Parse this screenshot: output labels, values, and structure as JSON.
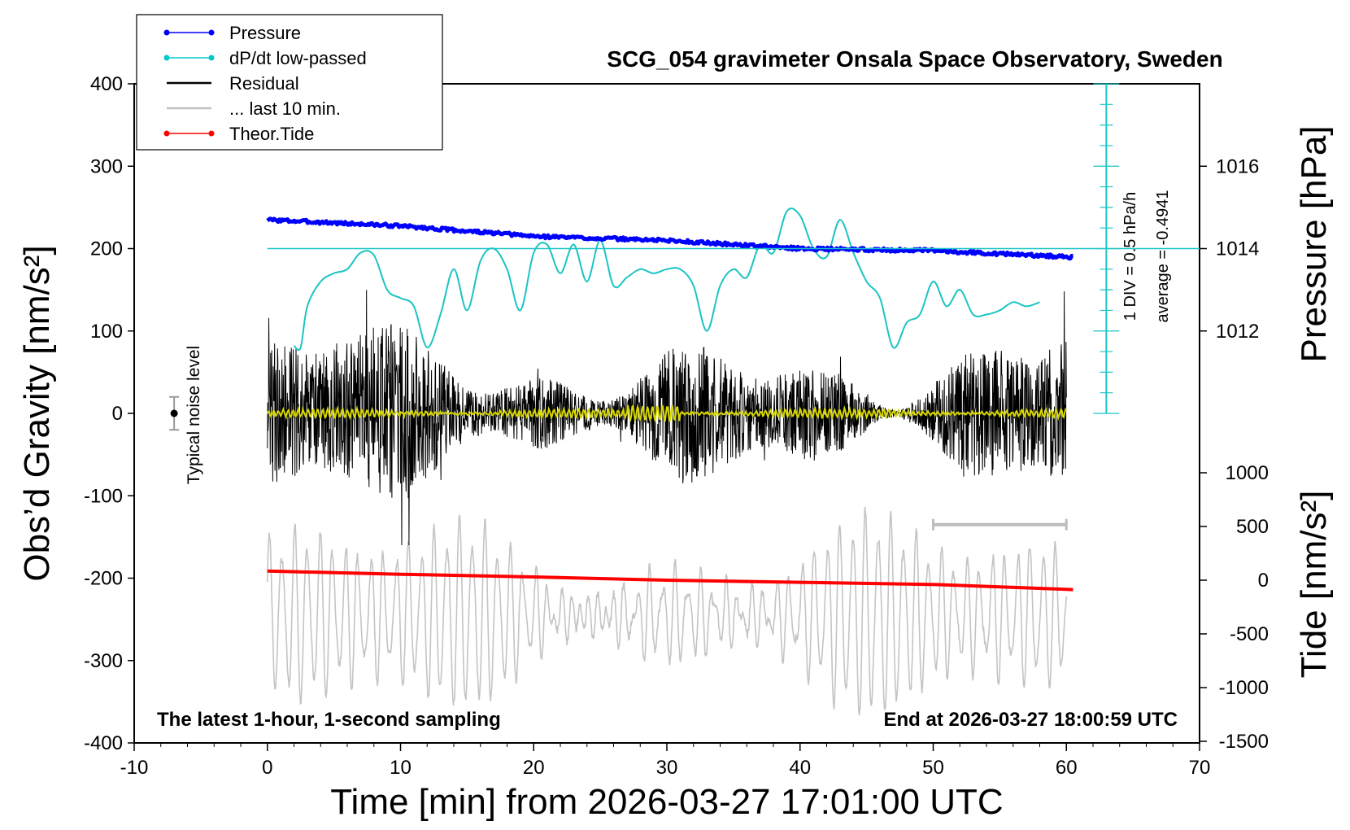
{
  "chart_data": {
    "type": "line",
    "title": "SCG_054 gravimeter Onsala Space Observatory, Sweden",
    "xlabel": "Time [min] from 2026-03-27 17:01:00 UTC",
    "ylabel_left": "Obs’d Gravity [nm/s²]",
    "ylabel_right_pressure": "Pressure [hPa]",
    "ylabel_right_tide": "Tide [nm/s²]",
    "xlim": [
      -10,
      70
    ],
    "ylim_gravity": [
      -400,
      400
    ],
    "x_ticks": [
      "-10",
      "0",
      "10",
      "20",
      "30",
      "40",
      "50",
      "60",
      "70"
    ],
    "y_ticks_gravity": [
      "400",
      "300",
      "200",
      "100",
      "0",
      "-100",
      "-200",
      "-300",
      "-400"
    ],
    "pressure_ticks": [
      "1016",
      "1014",
      "1012"
    ],
    "tide_ticks": [
      "1000",
      "500",
      "0",
      "-500",
      "-1000",
      "-1500"
    ],
    "legend_position": "top-left",
    "legend": [
      {
        "label": "Pressure",
        "color": "#0000ff",
        "marker": "dot"
      },
      {
        "label": "dP/dt low-passed",
        "color": "#00c8c8",
        "marker": "dot"
      },
      {
        "label": "Residual",
        "color": "#000000",
        "marker": "none"
      },
      {
        "label": "... last 10 min.",
        "color": "#c0c0c0",
        "marker": "none"
      },
      {
        "label": "Theor.Tide",
        "color": "#ff0000",
        "marker": "dot"
      }
    ],
    "annotations": {
      "noise_label": "Typical noise level",
      "scale_line1": "1 DIV = 0.5 hPa/h",
      "scale_line2": "average = -0.4941",
      "bottom_left": "The latest 1-hour, 1-second sampling",
      "bottom_right": "End at 2026-03-27 18:00:59 UTC"
    },
    "series": [
      {
        "name": "Pressure",
        "unit": "hPa",
        "color": "#0000ff",
        "x": [
          0,
          10,
          20,
          30,
          40,
          50,
          60
        ],
        "y": [
          1014.7,
          1014.55,
          1014.3,
          1014.2,
          1014.0,
          1013.95,
          1013.8
        ]
      },
      {
        "name": "Theor.Tide",
        "unit": "nm/s²",
        "color": "#ff0000",
        "x": [
          0,
          10,
          20,
          30,
          40,
          50,
          60
        ],
        "y": [
          85,
          55,
          30,
          0,
          -20,
          -40,
          -85
        ]
      },
      {
        "name": "dP/dt low-passed",
        "unit": "nm/s² (plot scale)",
        "color": "#00c8c8",
        "x": [
          2,
          2.5,
          3,
          4,
          5,
          6,
          7,
          8,
          9,
          10,
          11,
          12,
          13,
          14,
          15,
          16,
          17,
          18,
          19,
          20,
          21,
          22,
          23,
          24,
          25,
          26,
          27,
          28,
          29,
          30,
          31,
          32,
          33,
          34,
          35,
          36,
          37,
          38,
          39,
          40,
          41,
          42,
          43,
          44,
          45,
          46,
          47,
          48,
          49,
          50,
          51,
          52,
          53,
          54,
          55,
          56,
          57,
          58
        ],
        "y": [
          82,
          80,
          130,
          160,
          170,
          175,
          195,
          192,
          150,
          140,
          130,
          80,
          120,
          175,
          125,
          185,
          200,
          175,
          125,
          195,
          205,
          170,
          205,
          160,
          210,
          155,
          165,
          175,
          170,
          175,
          175,
          155,
          100,
          155,
          175,
          165,
          205,
          195,
          245,
          240,
          200,
          190,
          235,
          195,
          160,
          140,
          80,
          110,
          120,
          160,
          130,
          150,
          120,
          120,
          125,
          135,
          130,
          135
        ]
      },
      {
        "name": "Residual",
        "unit": "nm/s²",
        "color": "#000000",
        "x": [
          0,
          60
        ],
        "envelope_min": -160,
        "envelope_max": 180,
        "typical_amplitude": 90
      },
      {
        "name": "... last 10 min.",
        "unit": "nm/s²",
        "color": "#c0c0c0",
        "x": [
          50,
          60
        ],
        "y": [
          -135,
          -135
        ]
      }
    ],
    "noise_level_bar": {
      "x": -7,
      "y": 0,
      "range": [
        -20,
        20
      ]
    },
    "pressure_reference_line": 1014.0
  }
}
